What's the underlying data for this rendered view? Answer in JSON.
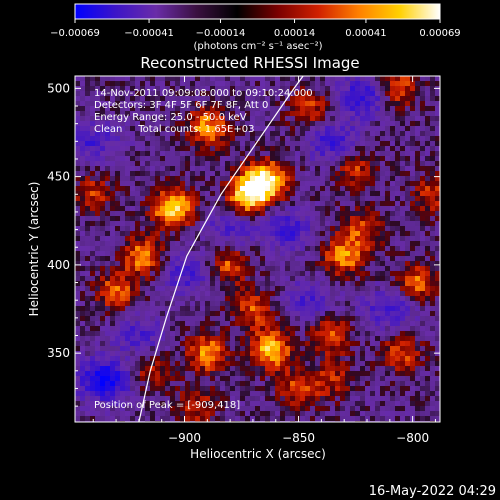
{
  "chart_data": {
    "type": "heatmap",
    "title": "Reconstructed RHESSI Image",
    "xlabel": "Heliocentric X (arcsec)",
    "ylabel": "Heliocentric Y (arcsec)",
    "xlim": [
      -948,
      -788
    ],
    "ylim": [
      311,
      507
    ],
    "x_ticks": [
      -900,
      -850,
      -800
    ],
    "y_ticks": [
      350,
      400,
      450,
      500
    ],
    "x_tick_labels": [
      "−900",
      "−850",
      "−800"
    ],
    "y_tick_labels": [
      "350",
      "400",
      "450",
      "500"
    ],
    "colorbar": {
      "ticks": [
        -0.00069,
        -0.00041,
        -0.00014,
        0.00014,
        0.00041,
        0.00069
      ],
      "tick_labels": [
        "−0.00069",
        "−0.00041",
        "−0.00014",
        "0.00014",
        "0.00041",
        "0.00069"
      ],
      "range": [
        -0.00069,
        0.00069
      ],
      "unit_label": "(photons cm⁻² s⁻¹ asec⁻²)",
      "colors": [
        "#0000ff",
        "#3c14c8",
        "#6a2ca8",
        "#3a1040",
        "#000000",
        "#7a0000",
        "#d02000",
        "#ff8000",
        "#ffd000",
        "#ffffff"
      ]
    },
    "annotations": [
      "14-Nov-2011 09:09:08.000 to 09:10:24.000",
      "Detectors: 3F 4F 5F 6F 7F 8F, Att 0",
      "Energy Range: 25.0 - 50.0 keV",
      "Clean     Total counts: 1.65E+03"
    ],
    "peak_label": "Position of Peak = [-909,418]",
    "limb_curve": [
      [
        -920,
        311
      ],
      [
        -915,
        340
      ],
      [
        -908,
        370
      ],
      [
        -899,
        405
      ],
      [
        -884,
        440
      ],
      [
        -868,
        470
      ],
      [
        -852,
        500
      ],
      [
        -848,
        507
      ]
    ],
    "peaks": [
      [
        -905,
        432,
        1.0
      ],
      [
        -872,
        440,
        1.0
      ],
      [
        -864,
        448,
        0.95
      ],
      [
        -890,
        478,
        0.75
      ],
      [
        -862,
        352,
        0.85
      ],
      [
        -890,
        350,
        0.7
      ],
      [
        -830,
        405,
        0.7
      ],
      [
        -798,
        390,
        0.6
      ],
      [
        -836,
        360,
        0.55
      ],
      [
        -806,
        500,
        0.55
      ],
      [
        -930,
        385,
        0.6
      ],
      [
        -918,
        405,
        0.7
      ],
      [
        -845,
        488,
        0.5
      ],
      [
        -825,
        455,
        0.45
      ],
      [
        -805,
        350,
        0.5
      ],
      [
        -880,
        400,
        0.55
      ],
      [
        -940,
        440,
        0.45
      ],
      [
        -850,
        330,
        0.5
      ],
      [
        -915,
        340,
        0.4
      ],
      [
        -792,
        440,
        0.45
      ],
      [
        -870,
        375,
        0.55
      ],
      [
        -822,
        420,
        0.5
      ],
      [
        -895,
        320,
        0.45
      ],
      [
        -835,
        335,
        0.4
      ]
    ],
    "troughs": [
      [
        -935,
        335,
        0.9
      ],
      [
        -822,
        495,
        0.6
      ],
      [
        -835,
        470,
        0.55
      ],
      [
        -900,
        395,
        0.45
      ],
      [
        -880,
        420,
        0.4
      ],
      [
        -810,
        375,
        0.5
      ],
      [
        -855,
        420,
        0.5
      ],
      [
        -940,
        470,
        0.45
      ],
      [
        -845,
        380,
        0.4
      ],
      [
        -920,
        360,
        0.4
      ]
    ]
  },
  "footer": {
    "timestamp": "16-May-2022 04:29"
  }
}
